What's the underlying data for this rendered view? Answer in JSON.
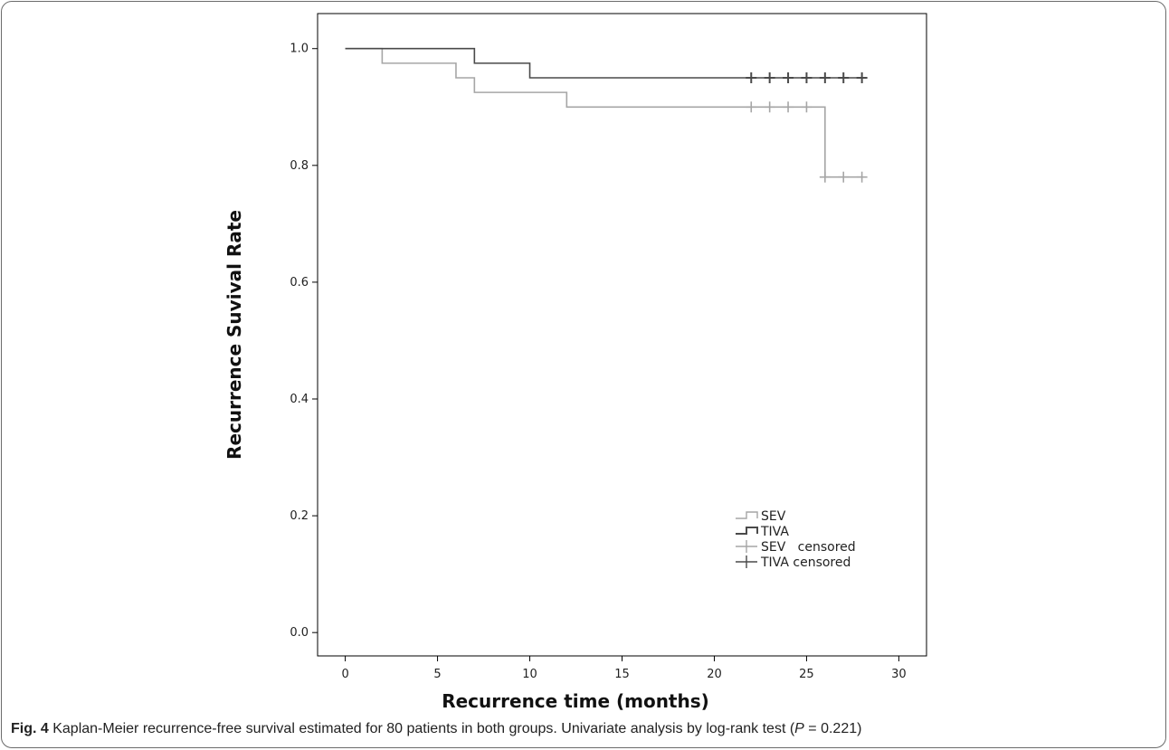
{
  "caption": {
    "label": "Fig. 4",
    "text_before_p": " Kaplan-Meier recurrence-free survival estimated for 80 patients in both groups. Univariate analysis by log-rank test (",
    "p_symbol": "P",
    "text_after_p": " = 0.221)"
  },
  "chart_data": {
    "type": "line",
    "subtype": "kaplan-meier",
    "title": "",
    "xlabel": "Recurrence time (months)",
    "ylabel": "Recurrence Suvival Rate",
    "xlim": [
      -1.5,
      31.5
    ],
    "ylim": [
      -0.04,
      1.06
    ],
    "xticks": [
      0,
      5,
      10,
      15,
      20,
      25,
      30
    ],
    "yticks": [
      0.0,
      0.2,
      0.4,
      0.6,
      0.8,
      1.0
    ],
    "ytick_labels": [
      "0.0",
      "0.2",
      "0.4",
      "0.6",
      "0.8",
      "1.0"
    ],
    "grid": false,
    "legend_position": "bottom-right",
    "series": [
      {
        "name": "SEV",
        "color": "#a6a6a6",
        "steps": [
          [
            0,
            1.0
          ],
          [
            2,
            0.975
          ],
          [
            6,
            0.95
          ],
          [
            7,
            0.925
          ],
          [
            12,
            0.9
          ],
          [
            26,
            0.78
          ],
          [
            28,
            0.78
          ]
        ],
        "censored": [
          [
            22,
            0.9
          ],
          [
            23,
            0.9
          ],
          [
            24,
            0.9
          ],
          [
            25,
            0.9
          ],
          [
            26,
            0.78
          ],
          [
            27,
            0.78
          ],
          [
            28,
            0.78
          ]
        ]
      },
      {
        "name": "TIVA",
        "color": "#4a4a4a",
        "steps": [
          [
            0,
            1.0
          ],
          [
            7,
            0.975
          ],
          [
            10,
            0.95
          ],
          [
            28,
            0.95
          ]
        ],
        "censored": [
          [
            22,
            0.95
          ],
          [
            23,
            0.95
          ],
          [
            24,
            0.95
          ],
          [
            25,
            0.95
          ],
          [
            26,
            0.95
          ],
          [
            27,
            0.95
          ],
          [
            28,
            0.95
          ]
        ]
      }
    ],
    "legend": [
      {
        "label": "SEV",
        "kind": "line",
        "color": "#a6a6a6"
      },
      {
        "label": "TIVA",
        "kind": "line",
        "color": "#4a4a4a"
      },
      {
        "label": "SEV   censored",
        "kind": "censor",
        "color": "#a6a6a6"
      },
      {
        "label": "TIVA censored",
        "kind": "censor",
        "color": "#4a4a4a"
      }
    ]
  }
}
